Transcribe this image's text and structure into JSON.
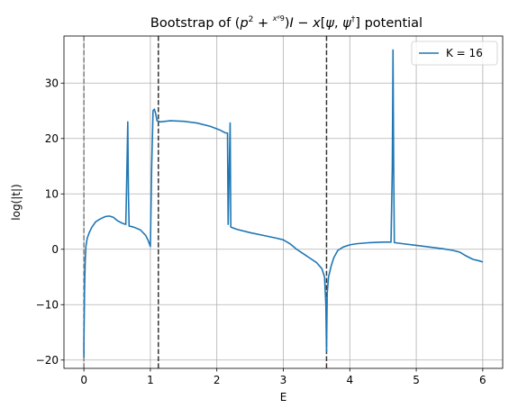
{
  "chart_data": {
    "type": "line",
    "title": "Bootstrap of (p² + x⁶/9)I − x[ψ, ψ†] potential",
    "title_parts": {
      "prefix": "Bootstrap of (",
      "p": "p",
      "p_exp": "2",
      "plus": " + ",
      "frac_num": "x⁶",
      "frac_den": "9",
      "after_frac": ")",
      "I": "I",
      "minus": " − ",
      "x": "x",
      "bracket_open": "[",
      "psi": "ψ",
      "comma": ", ",
      "psi2": "ψ",
      "dagger": "†",
      "bracket_close": "]",
      "suffix": " potential"
    },
    "xlabel": "E",
    "ylabel": "log(|t|)",
    "xlim": [
      -0.3,
      6.3
    ],
    "ylim": [
      -21.5,
      38.5
    ],
    "xticks": [
      0,
      1,
      2,
      3,
      4,
      5,
      6
    ],
    "yticks": [
      -20,
      -10,
      0,
      10,
      20,
      30
    ],
    "grid": true,
    "legend_position": "top-right",
    "vlines": [
      {
        "x": 0.0,
        "color": "#7f7f7f"
      },
      {
        "x": 1.12,
        "color": "#333333"
      },
      {
        "x": 3.65,
        "color": "#333333"
      }
    ],
    "series": [
      {
        "name": "K = 16",
        "color": "#1f77b4",
        "points": [
          [
            0.0,
            -19.5
          ],
          [
            0.0,
            -17.0
          ],
          [
            0.01,
            -7.0
          ],
          [
            0.02,
            -2.0
          ],
          [
            0.03,
            0.5
          ],
          [
            0.05,
            2.0
          ],
          [
            0.08,
            3.0
          ],
          [
            0.12,
            4.0
          ],
          [
            0.18,
            5.0
          ],
          [
            0.25,
            5.5
          ],
          [
            0.32,
            5.9
          ],
          [
            0.38,
            6.0
          ],
          [
            0.44,
            5.8
          ],
          [
            0.5,
            5.2
          ],
          [
            0.56,
            4.8
          ],
          [
            0.6,
            4.6
          ],
          [
            0.63,
            4.5
          ],
          [
            0.64,
            10.0
          ],
          [
            0.66,
            23.0
          ],
          [
            0.67,
            10.0
          ],
          [
            0.68,
            4.2
          ],
          [
            0.75,
            4.0
          ],
          [
            0.85,
            3.5
          ],
          [
            0.93,
            2.5
          ],
          [
            0.97,
            1.5
          ],
          [
            1.0,
            0.5
          ],
          [
            1.02,
            15.0
          ],
          [
            1.04,
            25.0
          ],
          [
            1.06,
            25.3
          ],
          [
            1.08,
            24.5
          ],
          [
            1.1,
            23.2
          ],
          [
            1.15,
            23.0
          ],
          [
            1.3,
            23.2
          ],
          [
            1.5,
            23.1
          ],
          [
            1.7,
            22.8
          ],
          [
            1.9,
            22.2
          ],
          [
            2.05,
            21.5
          ],
          [
            2.13,
            21.0
          ],
          [
            2.16,
            21.0
          ],
          [
            2.17,
            4.5
          ],
          [
            2.2,
            22.8
          ],
          [
            2.21,
            4.0
          ],
          [
            2.3,
            3.6
          ],
          [
            2.5,
            3.0
          ],
          [
            2.7,
            2.5
          ],
          [
            2.9,
            2.0
          ],
          [
            3.0,
            1.7
          ],
          [
            3.1,
            1.0
          ],
          [
            3.2,
            0.0
          ],
          [
            3.3,
            -0.8
          ],
          [
            3.4,
            -1.6
          ],
          [
            3.5,
            -2.4
          ],
          [
            3.58,
            -3.5
          ],
          [
            3.62,
            -5.0
          ],
          [
            3.64,
            -10.0
          ],
          [
            3.65,
            -18.5
          ],
          [
            3.66,
            -8.0
          ],
          [
            3.68,
            -5.0
          ],
          [
            3.72,
            -3.0
          ],
          [
            3.76,
            -1.5
          ],
          [
            3.82,
            -0.2
          ],
          [
            3.9,
            0.4
          ],
          [
            4.0,
            0.8
          ],
          [
            4.1,
            1.0
          ],
          [
            4.3,
            1.2
          ],
          [
            4.5,
            1.3
          ],
          [
            4.62,
            1.3
          ],
          [
            4.64,
            15.0
          ],
          [
            4.65,
            36.0
          ],
          [
            4.66,
            15.0
          ],
          [
            4.67,
            1.2
          ],
          [
            4.8,
            1.0
          ],
          [
            5.0,
            0.7
          ],
          [
            5.2,
            0.4
          ],
          [
            5.4,
            0.1
          ],
          [
            5.55,
            -0.2
          ],
          [
            5.65,
            -0.5
          ],
          [
            5.75,
            -1.2
          ],
          [
            5.85,
            -1.8
          ],
          [
            5.95,
            -2.1
          ],
          [
            6.0,
            -2.3
          ]
        ]
      }
    ]
  }
}
